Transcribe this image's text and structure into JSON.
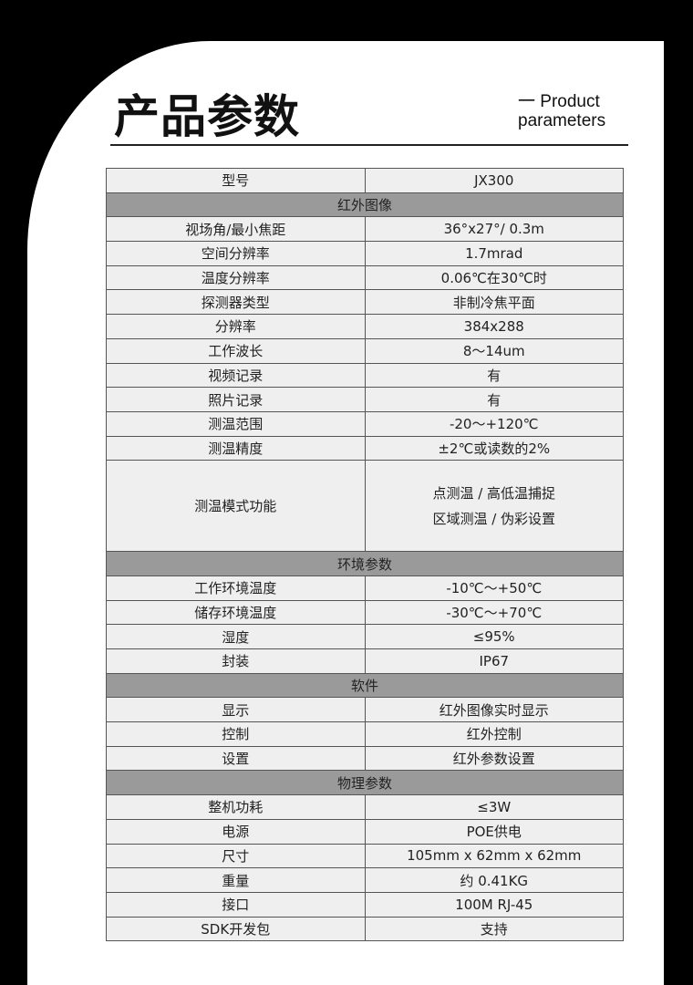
{
  "header": {
    "title": "产品参数",
    "subtitle_line1": "一 Product",
    "subtitle_line2": "parameters"
  },
  "table": {
    "model": {
      "label": "型号",
      "value": "JX300"
    },
    "sections": [
      {
        "title": "红外图像",
        "rows": [
          {
            "label": "视场角/最小焦距",
            "value": "36°x27°/ 0.3m"
          },
          {
            "label": "空间分辨率",
            "value": "1.7mrad"
          },
          {
            "label": "温度分辨率",
            "value": "0.06℃在30℃时"
          },
          {
            "label": "探测器类型",
            "value": "非制冷焦平面"
          },
          {
            "label": "分辨率",
            "value": "384x288"
          },
          {
            "label": "工作波长",
            "value": "8～14um"
          },
          {
            "label": "视频记录",
            "value": "有"
          },
          {
            "label": "照片记录",
            "value": "有"
          },
          {
            "label": "测温范围",
            "value": "-20～+120℃"
          },
          {
            "label": "测温精度",
            "value": "±2℃或读数的2%"
          },
          {
            "label": "测温模式功能",
            "value_lines": [
              "点测温 / 高低温捕捉",
              "区域测温 / 伪彩设置"
            ]
          }
        ]
      },
      {
        "title": "环境参数",
        "rows": [
          {
            "label": "工作环境温度",
            "value": "-10℃～+50℃"
          },
          {
            "label": "储存环境温度",
            "value": "-30℃～+70℃"
          },
          {
            "label": "湿度",
            "value": "≤95%"
          },
          {
            "label": "封装",
            "value": "IP67"
          }
        ]
      },
      {
        "title": "软件",
        "rows": [
          {
            "label": "显示",
            "value": "红外图像实时显示"
          },
          {
            "label": "控制",
            "value": "红外控制"
          },
          {
            "label": "设置",
            "value": "红外参数设置"
          }
        ]
      },
      {
        "title": "物理参数",
        "rows": [
          {
            "label": "整机功耗",
            "value": "≤3W"
          },
          {
            "label": "电源",
            "value": "POE供电"
          },
          {
            "label": "尺寸",
            "value": "105mm x 62mm x 62mm"
          },
          {
            "label": "重量",
            "value": "约 0.41KG"
          },
          {
            "label": "接口",
            "value": "100M RJ-45"
          },
          {
            "label": "SDK开发包",
            "value": "支持"
          }
        ]
      }
    ]
  },
  "colors": {
    "background": "#000000",
    "card": "#ffffff",
    "cell": "#efefef",
    "section": "#9a9a9a"
  }
}
